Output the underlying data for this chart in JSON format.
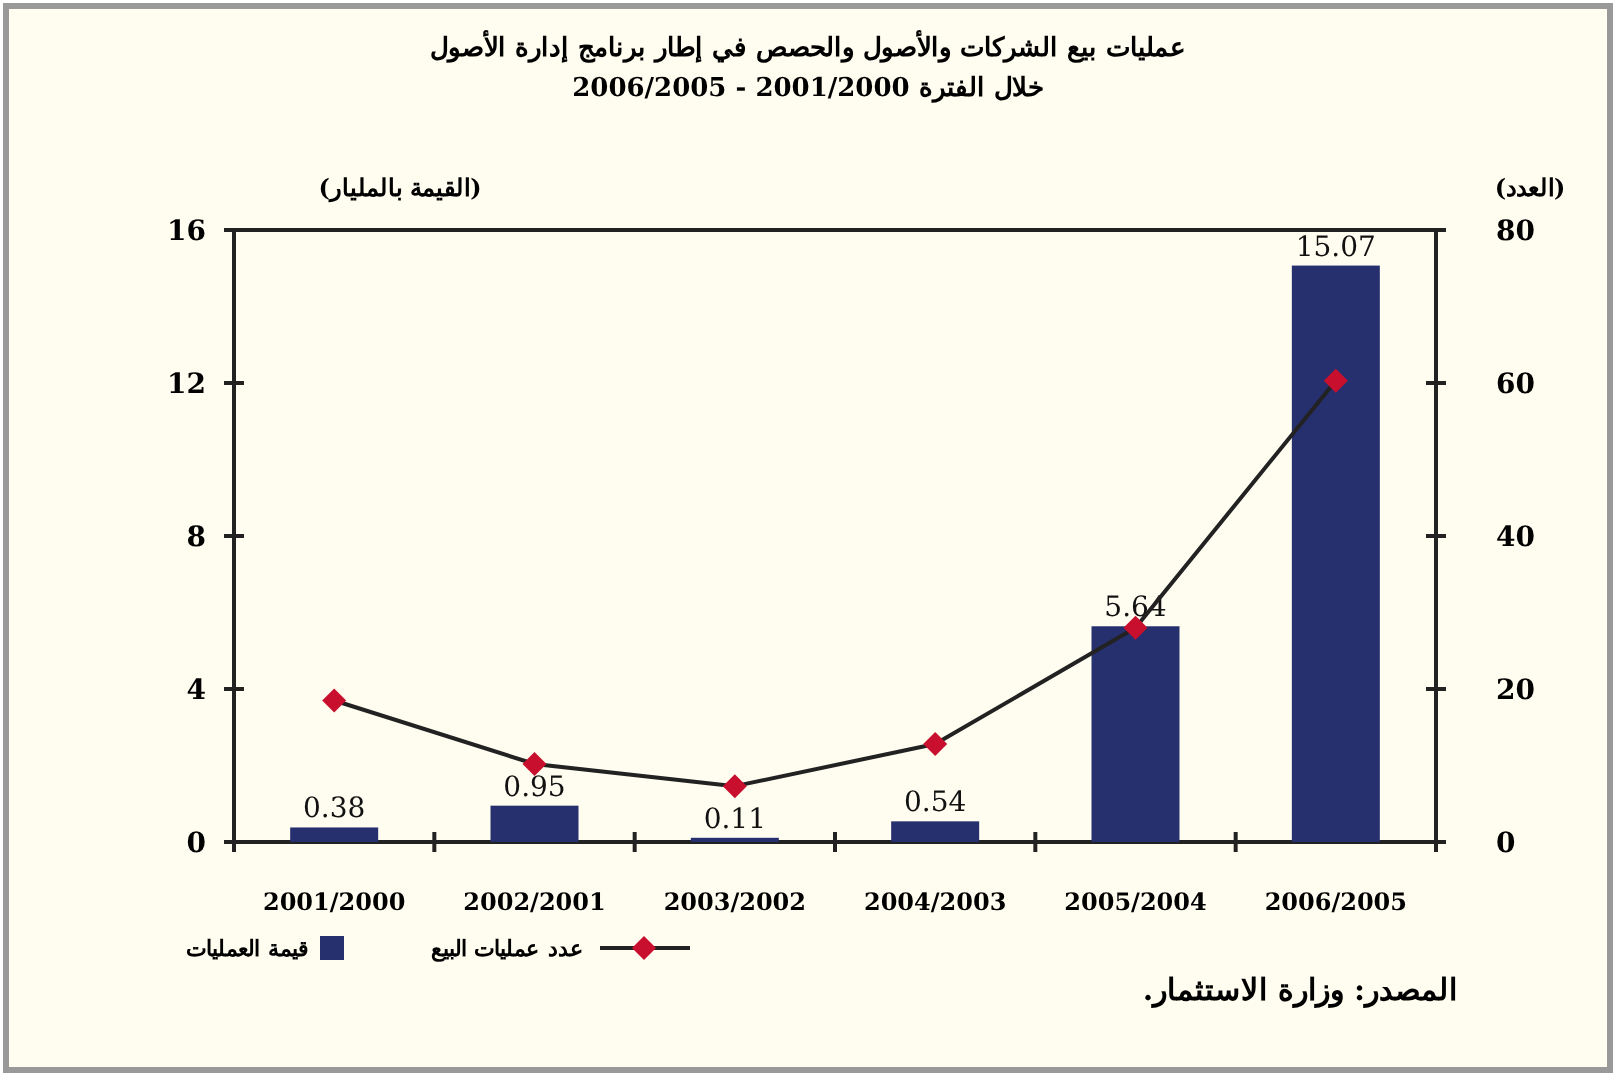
{
  "chart_data": {
    "type": "bar",
    "title": "عمليات بيع الشركات والأصول والحصص في إطار برنامج إدارة الأصول",
    "subtitle": "خلال الفترة 2001/2000 - 2006/2005",
    "ylabel": "(القيمة بالمليار)",
    "y2label": "(العدد)",
    "categories": [
      "2001/2000",
      "2002/2001",
      "2003/2002",
      "2004/2003",
      "2005/2004",
      "2006/2005"
    ],
    "series": [
      {
        "name": "قيمة العمليات",
        "color": "#27306e",
        "values": [
          0.38,
          0.95,
          0.11,
          0.54,
          5.64,
          15.07
        ],
        "value_labels": [
          "0.38",
          "0.95",
          "0.11",
          "0.54",
          "5.64",
          "15.07"
        ]
      },
      {
        "name": "عدد عمليات البيع",
        "type": "line",
        "axis": "y2",
        "color": "#c8102e",
        "marker": "diamond",
        "values": [
          18.5,
          10.2,
          7.3,
          12.8,
          28,
          60.3
        ]
      }
    ],
    "ylim": [
      0,
      16
    ],
    "yticks": [
      0,
      4,
      8,
      12,
      16
    ],
    "y2lim": [
      0,
      80
    ],
    "y2ticks": [
      0,
      20,
      40,
      60,
      80
    ],
    "legend": "bottom",
    "grid": false,
    "annotations": [
      "المصدر: وزارة الاستثمار."
    ]
  }
}
